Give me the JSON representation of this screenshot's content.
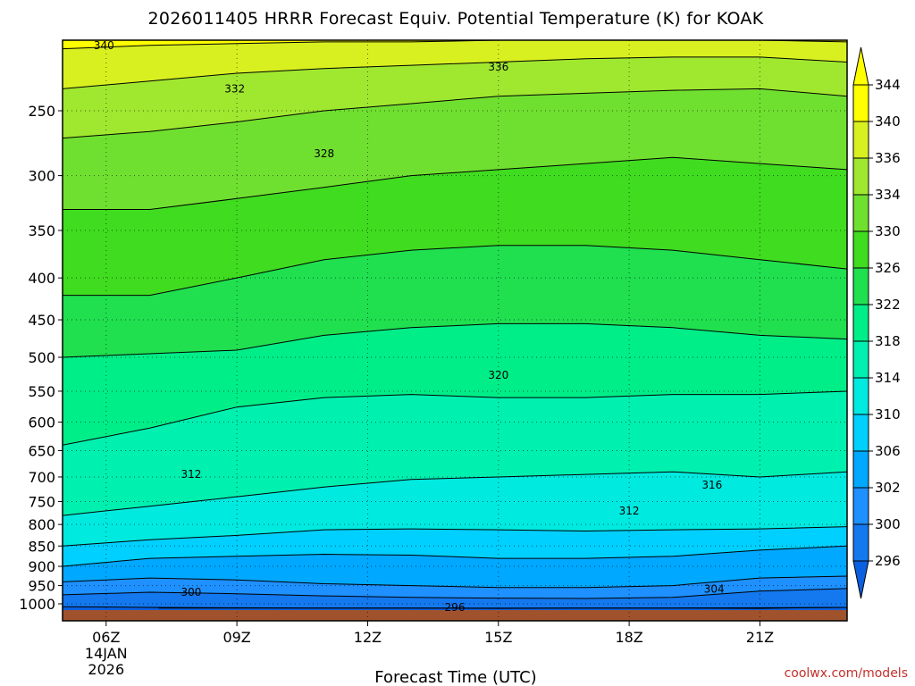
{
  "chart_data": {
    "type": "contour",
    "title": "2026011405 HRRR Forecast Equiv. Potential Temperature (K) for KOAK",
    "xlabel": "Forecast Time (UTC)",
    "ylabel": "",
    "watermark": "coolwx.com/models",
    "x_range_hours": [
      5,
      23
    ],
    "x_ticks": [
      {
        "hour": 6,
        "label": "06Z",
        "sub": [
          "14JAN",
          "2026"
        ]
      },
      {
        "hour": 9,
        "label": "09Z"
      },
      {
        "hour": 12,
        "label": "12Z"
      },
      {
        "hour": 15,
        "label": "15Z"
      },
      {
        "hour": 18,
        "label": "18Z"
      },
      {
        "hour": 21,
        "label": "21Z"
      }
    ],
    "y_axis": {
      "scale": "log",
      "direction": "reversed",
      "range_hPa": [
        1025,
        200
      ]
    },
    "y_ticks": [
      250,
      300,
      350,
      400,
      450,
      500,
      550,
      600,
      650,
      700,
      750,
      800,
      850,
      900,
      950,
      1000
    ],
    "grid": true,
    "ground_color": "#a0522d",
    "colorbar": {
      "levels": [
        296,
        300,
        302,
        306,
        310,
        314,
        318,
        322,
        326,
        330,
        334,
        336,
        340,
        344
      ],
      "colors": [
        "#0a60e0",
        "#1478ee",
        "#1e90ff",
        "#00a8ff",
        "#00d0ff",
        "#00eae0",
        "#00f0b0",
        "#00ee88",
        "#20e050",
        "#40dc20",
        "#70e030",
        "#a0e830",
        "#d8f020",
        "#ffff00",
        "#ffff00"
      ]
    },
    "contours": [
      {
        "level": 296,
        "points": [
          [
            7.2,
            1012
          ],
          [
            9.5,
            1012
          ],
          [
            11,
            1012
          ],
          [
            13,
            1012
          ],
          [
            15,
            1013
          ],
          [
            17,
            1012
          ],
          [
            19,
            1012
          ],
          [
            21,
            1013
          ],
          [
            22,
            1011
          ],
          [
            23,
            1010
          ]
        ],
        "label_at": 14
      }
    ],
    "contour_labels": [
      {
        "text": "340",
        "hour": 5.95,
        "p": 208
      },
      {
        "text": "336",
        "hour": 15.0,
        "p": 221
      },
      {
        "text": "332",
        "hour": 8.95,
        "p": 235
      },
      {
        "text": "328",
        "hour": 11.0,
        "p": 282
      },
      {
        "text": "320",
        "hour": 15.0,
        "p": 526
      },
      {
        "text": "312",
        "hour": 7.95,
        "p": 695
      },
      {
        "text": "316",
        "hour": 19.9,
        "p": 716
      },
      {
        "text": "312",
        "hour": 18.0,
        "p": 770
      },
      {
        "text": "304",
        "hour": 19.95,
        "p": 959
      },
      {
        "text": "300",
        "hour": 7.95,
        "p": 968
      },
      {
        "text": "296",
        "hour": 14.0,
        "p": 1010
      }
    ]
  }
}
